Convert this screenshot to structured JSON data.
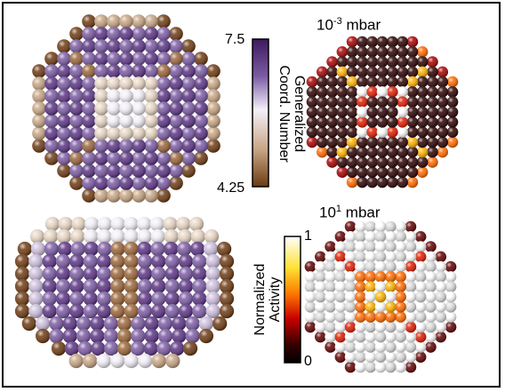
{
  "figure": {
    "panels": [
      {
        "name": "gcn-top",
        "palette": "gcn",
        "view": "square"
      },
      {
        "name": "gcn-side",
        "palette": "gcn",
        "view": "hex"
      },
      {
        "name": "activity-low",
        "palette": "act_low",
        "view": "square"
      },
      {
        "name": "activity-high",
        "palette": "act_high",
        "view": "square"
      }
    ],
    "pressure_low": {
      "base": "10",
      "exp": "-3",
      "unit": "mbar"
    },
    "pressure_high": {
      "base": "10",
      "exp": "1",
      "unit": "mbar"
    },
    "gcn_bar": {
      "title_line1": "Generalized",
      "title_line2": "Coord. Number",
      "max_label": "7.5",
      "min_label": "4.25",
      "colors": [
        "#3d1a5e",
        "#5a3383",
        "#7b5ba3",
        "#a58ec2",
        "#cdbfdd",
        "#f2eef6",
        "#e7d5c3",
        "#c7a584",
        "#9a6538",
        "#6d3a12"
      ]
    },
    "activity_bar": {
      "title_line1": "Normalized",
      "title_line2": "Activity",
      "max_label": "1",
      "min_label": "0",
      "colors": [
        "#ffffff",
        "#ffffcc",
        "#ffe033",
        "#ffb300",
        "#ff6a00",
        "#e01b00",
        "#a80000",
        "#600000",
        "#2a0000",
        "#000000"
      ]
    }
  }
}
